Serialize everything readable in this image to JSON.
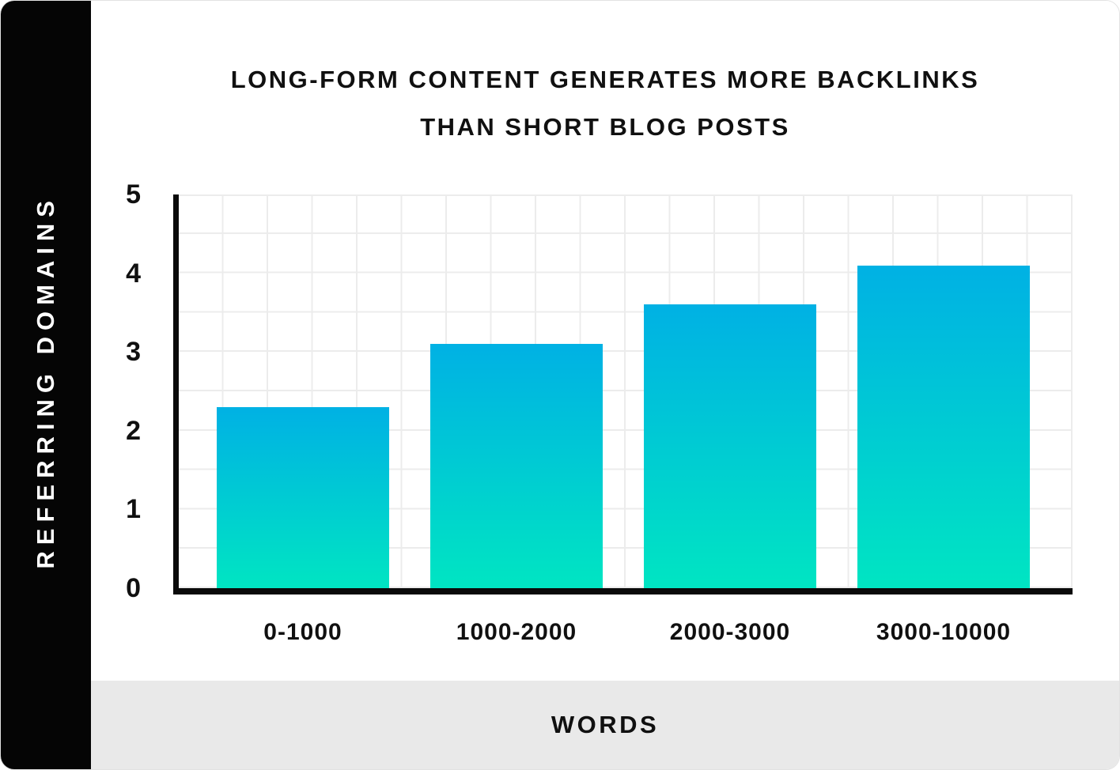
{
  "sidebar": {
    "y_axis_title": "REFERRING DOMAINS"
  },
  "title": {
    "line1": "LONG-FORM CONTENT GENERATES MORE BACKLINKS",
    "line2": "THAN SHORT BLOG POSTS"
  },
  "footer": {
    "x_axis_title": "WORDS"
  },
  "colors": {
    "bar_gradient_top": "#00b1e4",
    "bar_gradient_bottom": "#00e5c2",
    "sidebar_bg": "#050505",
    "footer_bg": "#e9e9e9",
    "grid_line": "#ececec",
    "axis_line": "#0a0a0a",
    "text": "#101010"
  },
  "chart_data": {
    "type": "bar",
    "title": "LONG-FORM CONTENT GENERATES MORE BACKLINKS THAN SHORT BLOG POSTS",
    "xlabel": "WORDS",
    "ylabel": "REFERRING DOMAINS",
    "categories": [
      "0-1000",
      "1000-2000",
      "2000-3000",
      "3000-10000"
    ],
    "values": [
      2.3,
      3.1,
      3.6,
      4.1
    ],
    "ylim": [
      0,
      5
    ],
    "yticks": [
      0,
      1,
      2,
      3,
      4,
      5
    ],
    "grid": true,
    "grid_step": 0.5,
    "legend": "none"
  }
}
